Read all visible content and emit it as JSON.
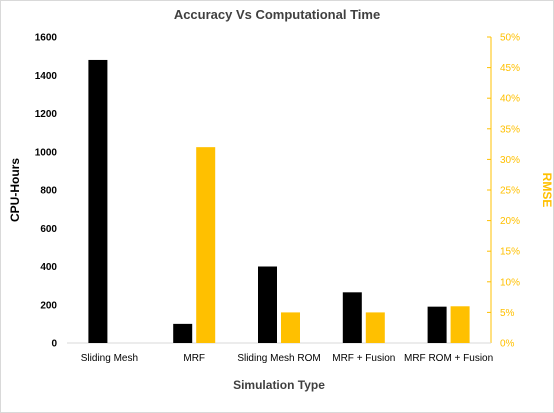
{
  "chart_data": {
    "type": "bar",
    "title": "Accuracy Vs Computational Time",
    "xlabel": "Simulation Type",
    "ylabel": "CPU-Hours",
    "ylabel_right": "RMSE",
    "categories": [
      "Sliding Mesh",
      "MRF",
      "Sliding Mesh ROM",
      "MRF + Fusion",
      "MRF ROM + Fusion"
    ],
    "ylim": [
      0,
      1600
    ],
    "ylim_right": [
      0,
      50
    ],
    "yticks": [
      "0",
      "200",
      "400",
      "600",
      "800",
      "1000",
      "1200",
      "1400",
      "1600"
    ],
    "yticks_right": [
      "0%",
      "5%",
      "10%",
      "15%",
      "20%",
      "25%",
      "30%",
      "35%",
      "40%",
      "45%",
      "50%"
    ],
    "grid": false,
    "series": [
      {
        "name": "CPU-Hours",
        "axis": "left",
        "color": "#000000",
        "values": [
          1480,
          100,
          400,
          265,
          190
        ]
      },
      {
        "name": "RMSE",
        "axis": "right",
        "color": "#FFC000",
        "values": [
          0,
          32,
          5,
          5,
          6
        ]
      }
    ]
  }
}
